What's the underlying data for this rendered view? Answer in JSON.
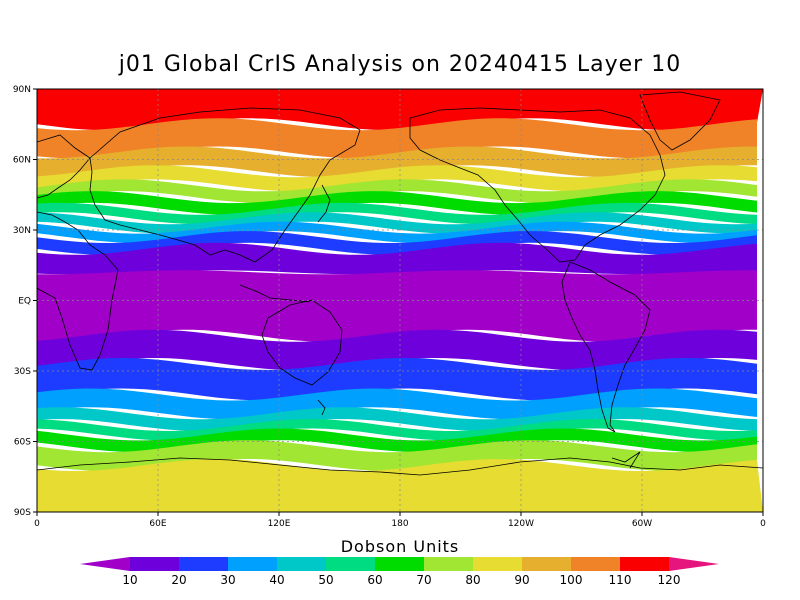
{
  "title": "j01 Global CrIS Analysis on 20240415 Layer 10",
  "lat_ticks": [
    "90N",
    "60N",
    "30N",
    "EQ",
    "30S",
    "60S",
    "90S"
  ],
  "lon_ticks": [
    "0",
    "60E",
    "120E",
    "180",
    "120W",
    "60W",
    "0"
  ],
  "colorbar": {
    "title": "Dobson Units",
    "levels": [
      "10",
      "20",
      "30",
      "40",
      "50",
      "60",
      "70",
      "80",
      "90",
      "100",
      "110",
      "120"
    ],
    "colors": [
      "#a000c8",
      "#6e00dc",
      "#1e3cff",
      "#00a0ff",
      "#00c8c8",
      "#00dc82",
      "#00dc00",
      "#a0e632",
      "#e6dc32",
      "#e6af2d",
      "#f08228",
      "#fa0000",
      "#e6147d"
    ]
  },
  "map": {
    "projection": "cylindrical-equidistant",
    "lon_range": [
      0,
      360
    ],
    "lat_range": [
      -90,
      90
    ],
    "bands": [
      {
        "lat_top": 90,
        "lat_bottom": 75,
        "color": "#fa0000"
      },
      {
        "lat_top": 75,
        "lat_bottom": 63,
        "color": "#f08228"
      },
      {
        "lat_top": 63,
        "lat_bottom": 55,
        "color": "#e6af2d"
      },
      {
        "lat_top": 55,
        "lat_bottom": 49,
        "color": "#e6dc32"
      },
      {
        "lat_top": 49,
        "lat_bottom": 44,
        "color": "#a0e632"
      },
      {
        "lat_top": 44,
        "lat_bottom": 39,
        "color": "#00dc00"
      },
      {
        "lat_top": 39,
        "lat_bottom": 35,
        "color": "#00dc82"
      },
      {
        "lat_top": 35,
        "lat_bottom": 31,
        "color": "#00c8c8"
      },
      {
        "lat_top": 31,
        "lat_bottom": 27,
        "color": "#00a0ff"
      },
      {
        "lat_top": 27,
        "lat_bottom": 22,
        "color": "#1e3cff"
      },
      {
        "lat_top": 22,
        "lat_bottom": 12,
        "color": "#6e00dc"
      },
      {
        "lat_top": 12,
        "lat_bottom": -15,
        "color": "#a000c8"
      },
      {
        "lat_top": -15,
        "lat_bottom": -27,
        "color": "#6e00dc"
      },
      {
        "lat_top": -27,
        "lat_bottom": -40,
        "color": "#1e3cff"
      },
      {
        "lat_top": -40,
        "lat_bottom": -48,
        "color": "#00a0ff"
      },
      {
        "lat_top": -48,
        "lat_bottom": -53,
        "color": "#00c8c8"
      },
      {
        "lat_top": -53,
        "lat_bottom": -57,
        "color": "#00dc82"
      },
      {
        "lat_top": -57,
        "lat_bottom": -62,
        "color": "#00dc00"
      },
      {
        "lat_top": -62,
        "lat_bottom": -70,
        "color": "#a0e632"
      },
      {
        "lat_top": -70,
        "lat_bottom": -90,
        "color": "#e6dc32"
      }
    ]
  }
}
